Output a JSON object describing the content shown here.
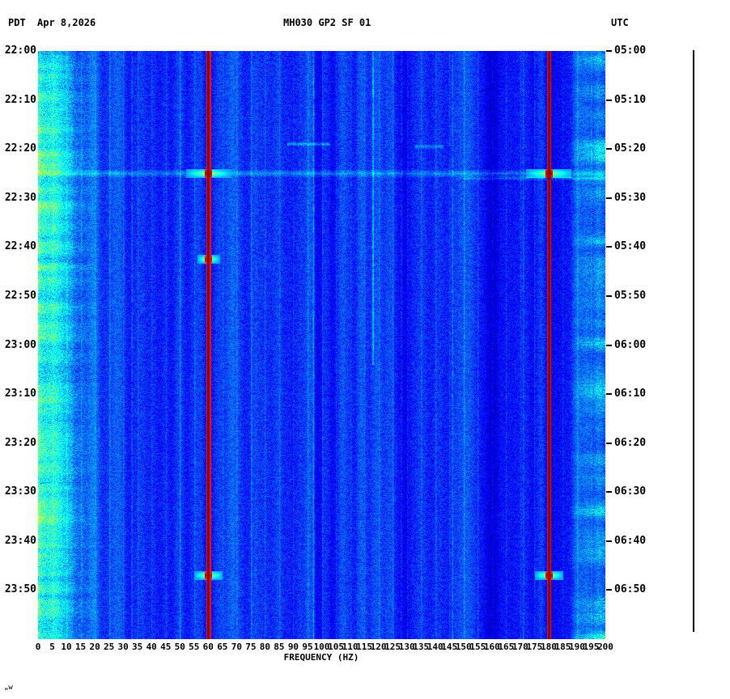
{
  "header": {
    "left_timezone": "PDT",
    "date": "Apr 8,2026",
    "title": "MH030 GP2 SF 01",
    "right_timezone": "UTC"
  },
  "axes": {
    "left_tick_labels": [
      "22:00",
      "22:10",
      "22:20",
      "22:30",
      "22:40",
      "22:50",
      "23:00",
      "23:10",
      "23:20",
      "23:30",
      "23:40",
      "23:50"
    ],
    "right_tick_labels": [
      "05:00",
      "05:10",
      "05:20",
      "05:30",
      "05:40",
      "05:50",
      "06:00",
      "06:10",
      "06:20",
      "06:30",
      "06:40",
      "06:50"
    ],
    "tick_interval_minutes": 10,
    "freq_tick_labels": [
      0,
      5,
      10,
      15,
      20,
      25,
      30,
      35,
      40,
      45,
      50,
      55,
      60,
      65,
      70,
      75,
      80,
      85,
      90,
      95,
      100,
      105,
      110,
      115,
      120,
      125,
      130,
      135,
      140,
      145,
      150,
      155,
      160,
      165,
      170,
      175,
      180,
      185,
      190,
      195,
      200
    ],
    "xlabel": "FREQUENCY (HZ)"
  },
  "corner_mark": "„w",
  "chart_data": {
    "type": "heatmap",
    "subtype": "spectrogram",
    "title": "MH030 GP2 SF 01",
    "xlabel": "FREQUENCY (HZ)",
    "x_range_hz": [
      0,
      200
    ],
    "x_tick_step_hz": 5,
    "time_axis": {
      "start_pdt": "22:00",
      "end_pdt": "24:00",
      "start_utc": "05:00",
      "end_utc": "07:00",
      "duration_minutes": 120,
      "tick_step_minutes": 10
    },
    "colormap": "jet",
    "background": {
      "base_level": 0.17,
      "stripe_amplitude": 0.35,
      "grid_stripe_hz": 5
    },
    "low_freq_noise": {
      "cutoff_hz": 24,
      "boost": 0.16,
      "variability": 0.24
    },
    "persistent_lines": [
      {
        "hz": 60,
        "level": 1.0,
        "edge_level": 0.87
      },
      {
        "hz": 180,
        "level": 1.0,
        "edge_level": 0.88
      }
    ],
    "faint_lines": [
      {
        "hz": 97,
        "level": 0.1
      },
      {
        "hz": 118,
        "level": 0.15,
        "start_min": 0,
        "end_min": 64
      },
      {
        "hz": 146,
        "level": 0.08
      },
      {
        "hz": 128,
        "level": 0.06
      },
      {
        "hz": 33,
        "level": 0.07
      },
      {
        "hz": 171,
        "level": 0.06
      }
    ],
    "events": [
      {
        "time_pdt": "22:25",
        "minute": 25,
        "center_hz": [
          60,
          180
        ],
        "level": 0.95,
        "broadband": true,
        "glow_hz": 8
      },
      {
        "time_pdt": "22:42",
        "minute": 42.5,
        "center_hz": [
          60
        ],
        "level": 0.92,
        "broadband": false,
        "glow_hz": 4
      },
      {
        "time_pdt": "23:47",
        "minute": 107,
        "center_hz": [
          60,
          180
        ],
        "level": 0.93,
        "broadband": false,
        "glow_hz": 5
      }
    ],
    "streaks": [
      {
        "minute": 19,
        "from_hz": 88,
        "to_hz": 103,
        "level": 0.12
      },
      {
        "minute": 19.5,
        "from_hz": 133,
        "to_hz": 143,
        "level": 0.1
      },
      {
        "minute": 26,
        "from_hz": 150,
        "to_hz": 200,
        "level": 0.08
      }
    ],
    "right_edge_band": {
      "from_hz": 186,
      "level": 0.17
    }
  }
}
